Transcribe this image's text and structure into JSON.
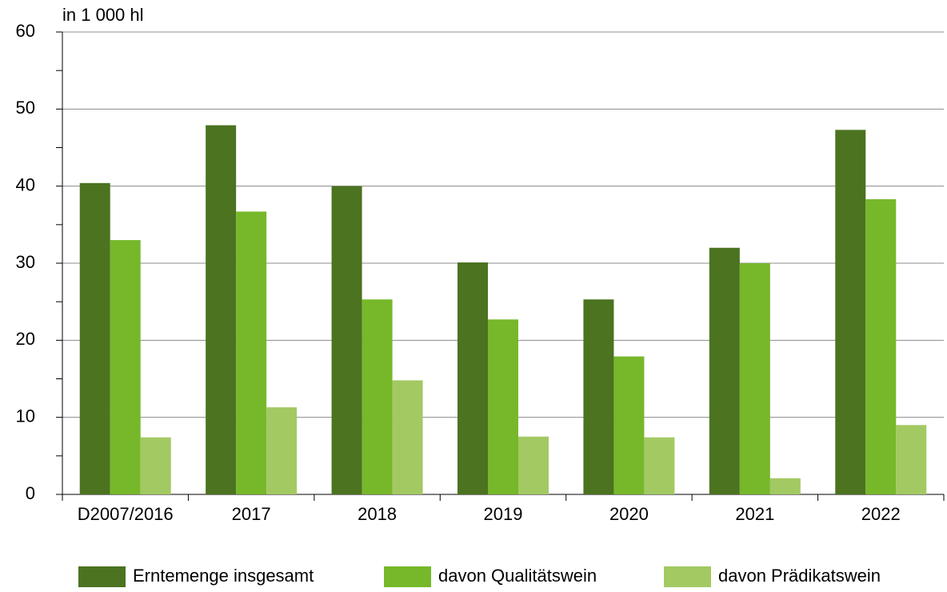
{
  "chart_data": {
    "type": "bar",
    "y_axis_label": "in 1 000 hl",
    "categories": [
      "D2007/2016",
      "2017",
      "2018",
      "2019",
      "2020",
      "2021",
      "2022"
    ],
    "series": [
      {
        "name": "Erntemenge insgesamt",
        "color": "#4b7320",
        "values": [
          40.4,
          47.9,
          40.0,
          30.1,
          25.3,
          32.0,
          47.3
        ]
      },
      {
        "name": "davon Qualitätswein",
        "color": "#76b82a",
        "values": [
          33.0,
          36.7,
          25.3,
          22.7,
          17.9,
          30.0,
          38.3
        ]
      },
      {
        "name": "davon Prädikatswein",
        "color": "#a3c963",
        "values": [
          7.4,
          11.3,
          14.8,
          7.5,
          7.4,
          2.1,
          9.0
        ]
      }
    ],
    "ylim": [
      0,
      60
    ],
    "yticks": [
      0,
      10,
      20,
      30,
      40,
      50,
      60
    ],
    "grid": true,
    "legend": "bottom"
  }
}
